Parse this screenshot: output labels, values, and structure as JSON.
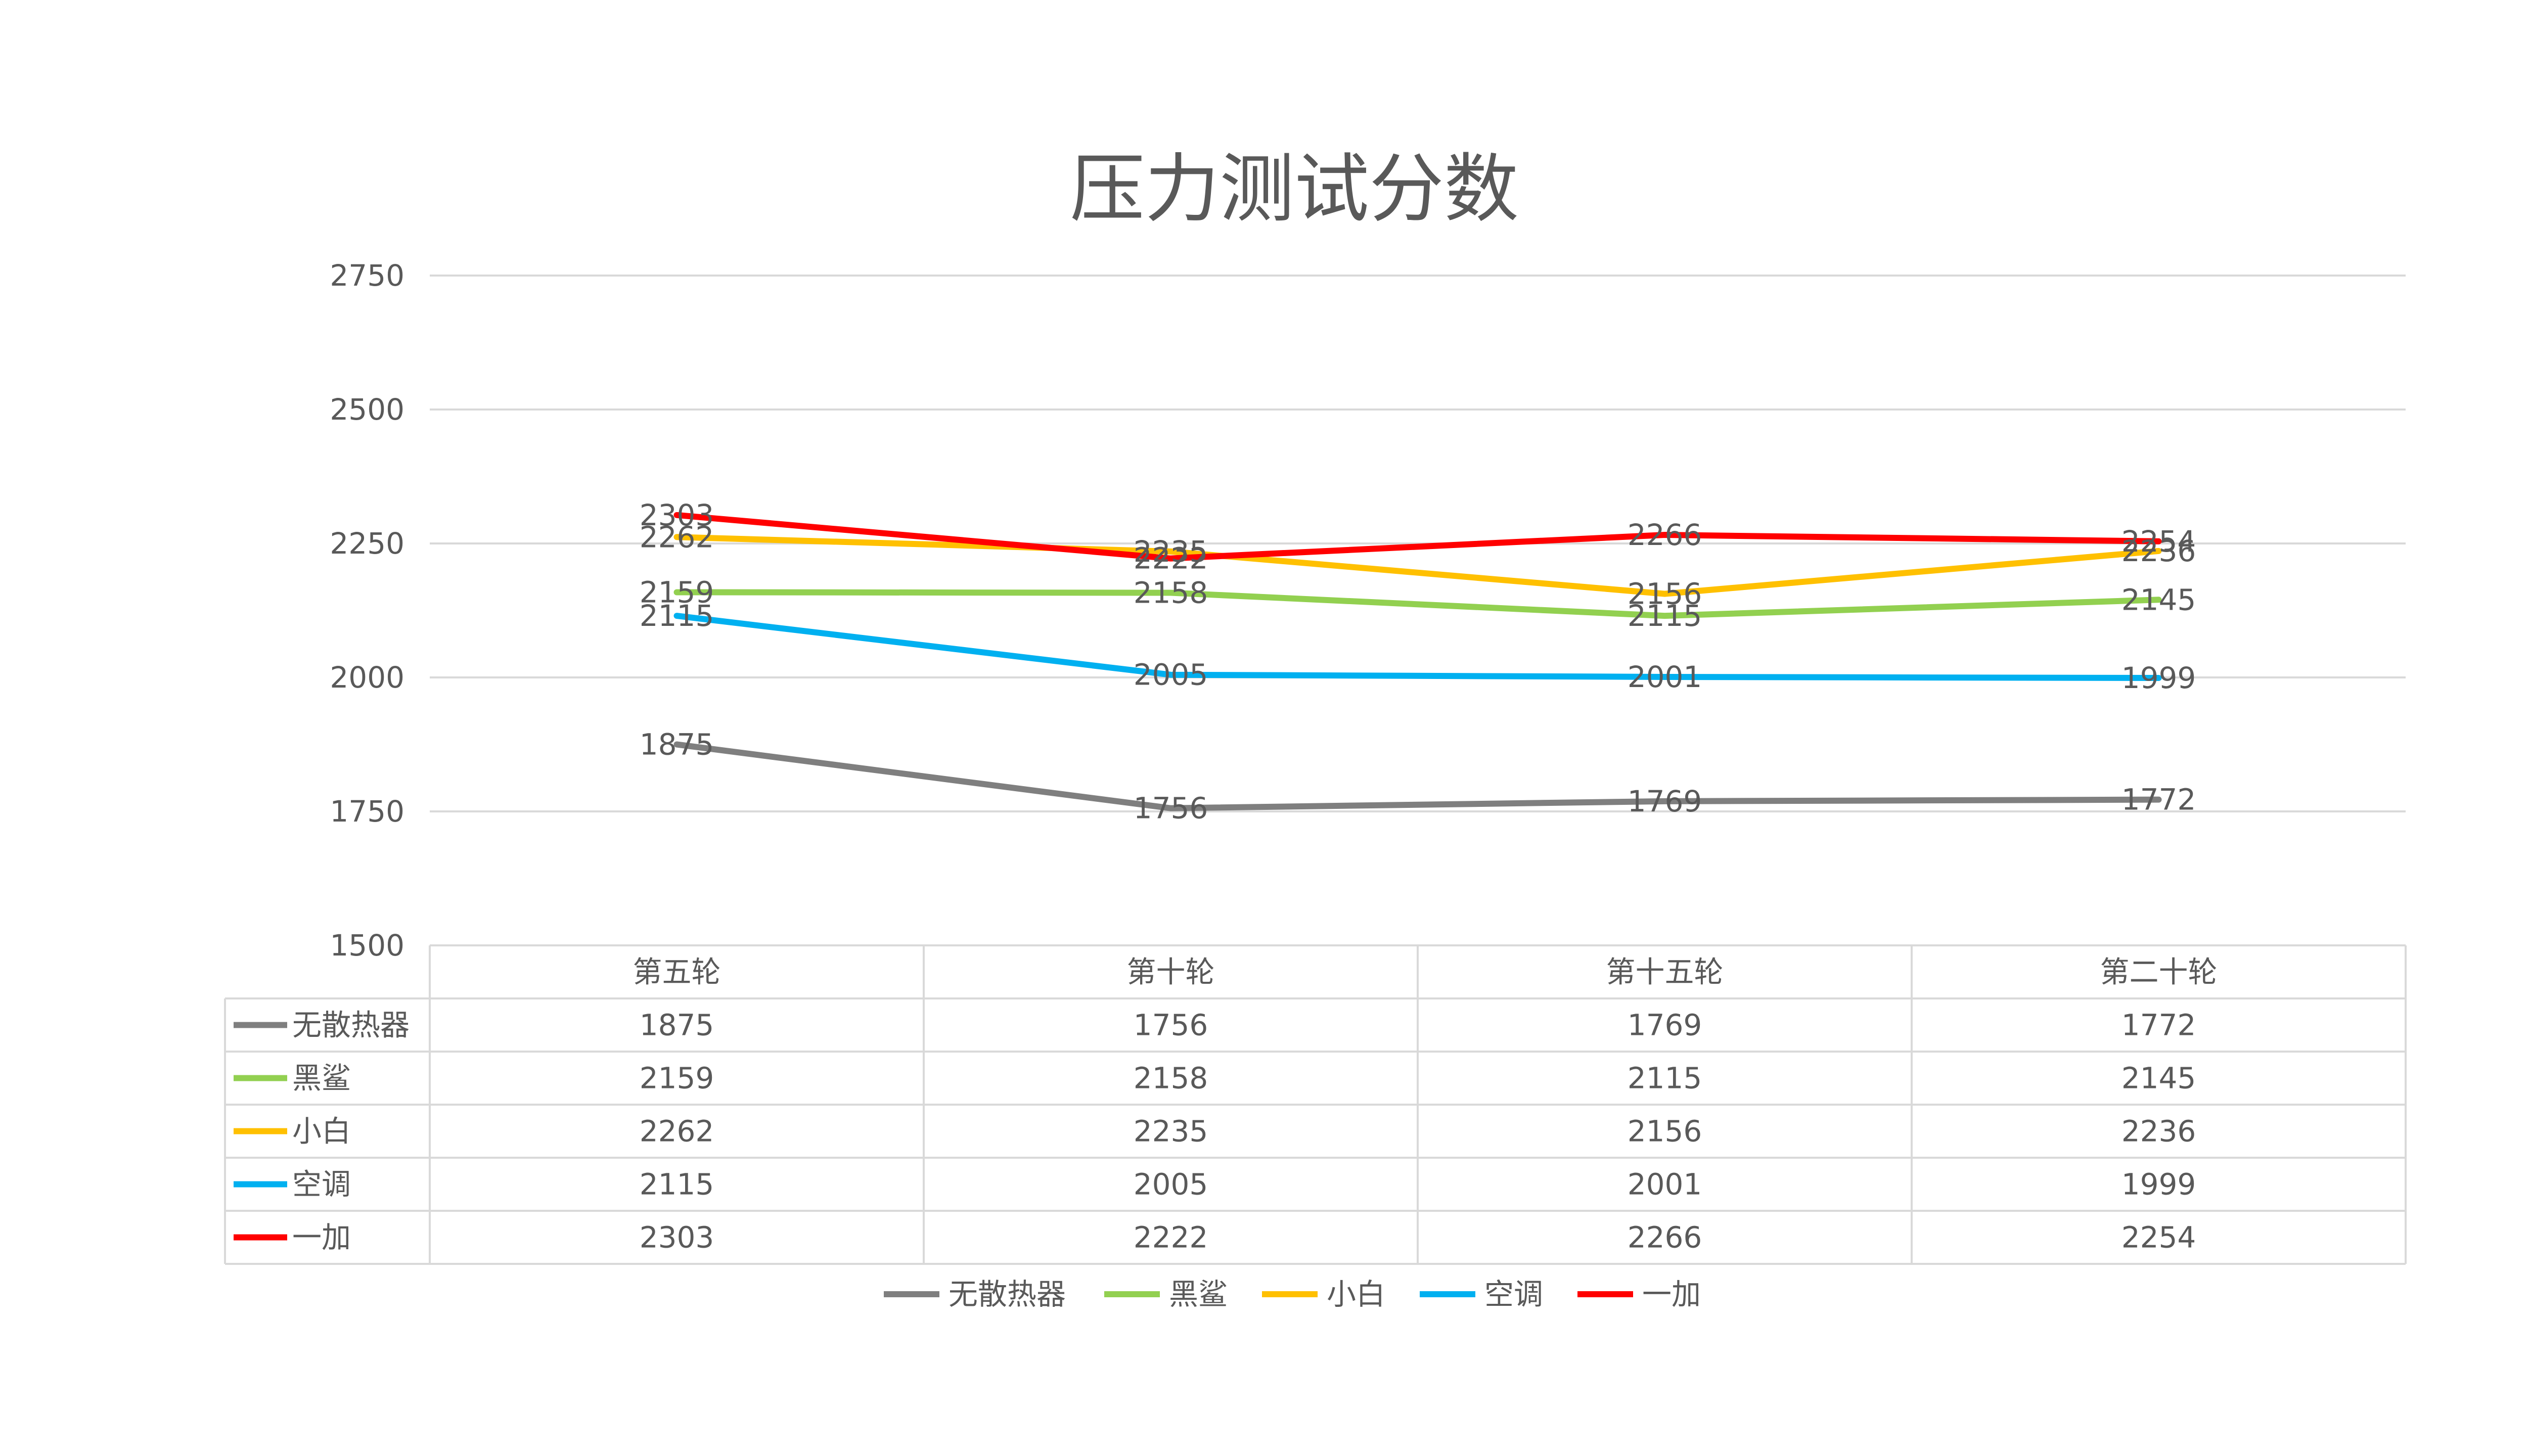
{
  "chart_data": {
    "type": "line",
    "title": "压力测试分数",
    "categories": [
      "第五轮",
      "第十轮",
      "第十五轮",
      "第二十轮"
    ],
    "ylim": [
      1500,
      2750
    ],
    "yticks": [
      1500,
      1750,
      2000,
      2250,
      2500,
      2750
    ],
    "grid": true,
    "legend_position": "bottom",
    "data_table": true,
    "series": [
      {
        "name": "无散热器",
        "color": "#7f7f7f",
        "values": [
          1875,
          1756,
          1769,
          1772
        ]
      },
      {
        "name": "黑鲨",
        "color": "#92d050",
        "values": [
          2159,
          2158,
          2115,
          2145
        ]
      },
      {
        "name": "小白",
        "color": "#ffc000",
        "values": [
          2262,
          2235,
          2156,
          2236
        ]
      },
      {
        "name": "空调",
        "color": "#00b0f0",
        "values": [
          2115,
          2005,
          2001,
          1999
        ]
      },
      {
        "name": "一加",
        "color": "#ff0000",
        "values": [
          2303,
          2222,
          2266,
          2254
        ]
      }
    ]
  }
}
